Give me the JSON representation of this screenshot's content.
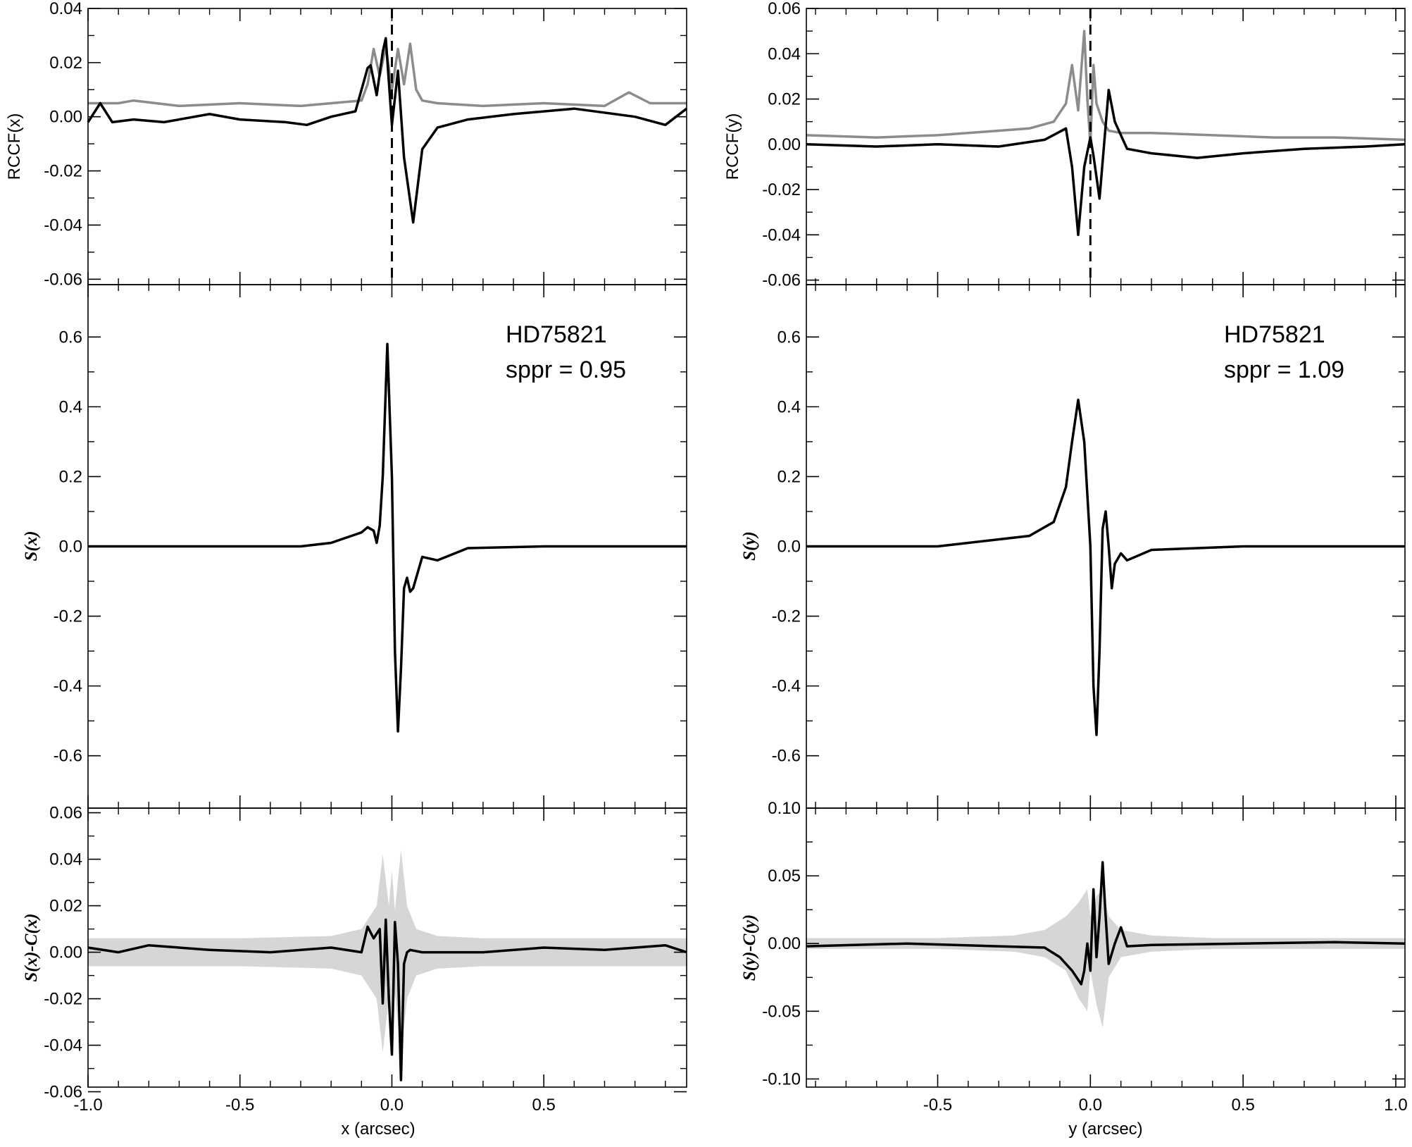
{
  "chart_data": [
    {
      "id": "top-left",
      "type": "line",
      "ylabel": "RCCF(x)",
      "xlim": [
        -1.0,
        0.97
      ],
      "ylim": [
        -0.062,
        0.04
      ],
      "yticks": [
        0.04,
        0.02,
        0.0,
        -0.02,
        -0.04,
        -0.06
      ],
      "ytick_labels": [
        "0.04",
        "0.02",
        "0.00",
        "-0.02",
        "-0.04",
        "-0.06"
      ],
      "vline_x": 0.0,
      "series": [
        {
          "color": "#8c8c8c",
          "x": [
            -1.0,
            -0.9,
            -0.85,
            -0.7,
            -0.5,
            -0.3,
            -0.2,
            -0.1,
            -0.08,
            -0.06,
            -0.04,
            -0.02,
            0.0,
            0.02,
            0.04,
            0.06,
            0.08,
            0.1,
            0.15,
            0.3,
            0.5,
            0.7,
            0.78,
            0.85,
            0.97
          ],
          "y": [
            0.005,
            0.005,
            0.006,
            0.004,
            0.005,
            0.004,
            0.005,
            0.006,
            0.012,
            0.025,
            0.015,
            0.026,
            0.01,
            0.025,
            0.012,
            0.027,
            0.01,
            0.006,
            0.005,
            0.004,
            0.005,
            0.004,
            0.009,
            0.005,
            0.005
          ]
        },
        {
          "color": "#000000",
          "x": [
            -1.0,
            -0.96,
            -0.92,
            -0.85,
            -0.75,
            -0.6,
            -0.5,
            -0.35,
            -0.28,
            -0.2,
            -0.12,
            -0.08,
            -0.07,
            -0.05,
            -0.03,
            -0.02,
            0.0,
            0.02,
            0.04,
            0.07,
            0.1,
            0.15,
            0.25,
            0.4,
            0.6,
            0.8,
            0.9,
            0.97
          ],
          "y": [
            -0.002,
            0.005,
            -0.002,
            -0.001,
            -0.002,
            0.001,
            -0.001,
            -0.002,
            -0.003,
            0.0,
            0.002,
            0.018,
            0.019,
            0.008,
            0.024,
            0.029,
            -0.003,
            0.017,
            -0.015,
            -0.039,
            -0.012,
            -0.004,
            -0.001,
            0.001,
            0.003,
            0.0,
            -0.003,
            0.003
          ]
        }
      ]
    },
    {
      "id": "mid-left",
      "type": "line",
      "ylabel": "S(x)",
      "xlim": [
        -1.0,
        0.97
      ],
      "ylim": [
        -0.75,
        0.75
      ],
      "yticks": [
        0.6,
        0.4,
        0.2,
        0.0,
        -0.2,
        -0.4,
        -0.6
      ],
      "ytick_labels": [
        "0.6",
        "0.4",
        "0.2",
        "0.0",
        "-0.2",
        "-0.4",
        "-0.6"
      ],
      "annotations": [
        "HD75821",
        "sppr = 0.95"
      ],
      "series": [
        {
          "color": "#000000",
          "x": [
            -1.0,
            -0.6,
            -0.3,
            -0.2,
            -0.1,
            -0.08,
            -0.06,
            -0.05,
            -0.04,
            -0.03,
            -0.015,
            0.0,
            0.01,
            0.02,
            0.03,
            0.04,
            0.05,
            0.06,
            0.07,
            0.1,
            0.15,
            0.25,
            0.5,
            0.97
          ],
          "y": [
            0.0,
            0.0,
            0.0,
            0.01,
            0.04,
            0.055,
            0.045,
            0.01,
            0.06,
            0.2,
            0.58,
            0.2,
            -0.3,
            -0.53,
            -0.35,
            -0.12,
            -0.09,
            -0.13,
            -0.12,
            -0.03,
            -0.04,
            -0.005,
            0.0,
            0.0
          ]
        }
      ]
    },
    {
      "id": "bot-left",
      "type": "area",
      "ylabel": "S(x)-C(x)",
      "xlabel": "x (arcsec)",
      "xlim": [
        -1.0,
        0.97
      ],
      "ylim": [
        -0.058,
        0.062
      ],
      "yticks": [
        0.06,
        0.04,
        0.02,
        0.0,
        -0.02,
        -0.04,
        -0.06
      ],
      "ytick_labels": [
        "0.06",
        "0.04",
        "0.02",
        "0.00",
        "-0.02",
        "-0.04",
        "-0.06"
      ],
      "xticks": [
        -1.0,
        -0.5,
        0.0,
        0.5
      ],
      "xtick_labels": [
        "-1.0",
        "-0.5",
        "0.0",
        "0.5"
      ],
      "band": {
        "color": "#d6d6d6",
        "x": [
          -1.0,
          -0.5,
          -0.2,
          -0.1,
          -0.05,
          -0.03,
          -0.01,
          0.0,
          0.01,
          0.03,
          0.05,
          0.08,
          0.15,
          0.3,
          0.6,
          0.97
        ],
        "upper": [
          0.006,
          0.006,
          0.007,
          0.01,
          0.02,
          0.042,
          0.02,
          0.035,
          0.018,
          0.044,
          0.02,
          0.01,
          0.007,
          0.006,
          0.006,
          0.006
        ],
        "lower": [
          -0.006,
          -0.006,
          -0.007,
          -0.01,
          -0.02,
          -0.043,
          -0.02,
          -0.035,
          -0.018,
          -0.044,
          -0.02,
          -0.01,
          -0.007,
          -0.006,
          -0.006,
          -0.006
        ]
      },
      "series": [
        {
          "color": "#000000",
          "x": [
            -1.0,
            -0.9,
            -0.8,
            -0.6,
            -0.4,
            -0.2,
            -0.1,
            -0.08,
            -0.06,
            -0.04,
            -0.03,
            -0.02,
            -0.01,
            0.0,
            0.01,
            0.02,
            0.03,
            0.04,
            0.05,
            0.06,
            0.1,
            0.3,
            0.5,
            0.7,
            0.9,
            0.97
          ],
          "y": [
            0.002,
            0.0,
            0.003,
            0.001,
            0.0,
            0.002,
            0.0,
            0.011,
            0.006,
            0.01,
            -0.022,
            0.014,
            -0.02,
            -0.044,
            0.013,
            -0.005,
            -0.055,
            -0.005,
            0.0,
            0.001,
            0.0,
            0.0,
            0.002,
            0.001,
            0.003,
            0.0
          ]
        }
      ]
    },
    {
      "id": "top-right",
      "type": "line",
      "ylabel": "RCCF(y)",
      "xlim": [
        -0.93,
        1.03
      ],
      "ylim": [
        -0.062,
        0.06
      ],
      "yticks": [
        0.06,
        0.04,
        0.02,
        0.0,
        -0.02,
        -0.04,
        -0.06
      ],
      "ytick_labels": [
        "0.06",
        "0.04",
        "0.02",
        "0.00",
        "-0.02",
        "-0.04",
        "-0.06"
      ],
      "vline_x": 0.0,
      "series": [
        {
          "color": "#8c8c8c",
          "x": [
            -0.93,
            -0.7,
            -0.5,
            -0.3,
            -0.2,
            -0.12,
            -0.08,
            -0.06,
            -0.04,
            -0.02,
            -0.01,
            0.0,
            0.01,
            0.02,
            0.04,
            0.06,
            0.1,
            0.2,
            0.4,
            0.6,
            0.8,
            1.03
          ],
          "y": [
            0.004,
            0.003,
            0.004,
            0.006,
            0.007,
            0.01,
            0.018,
            0.035,
            0.015,
            0.05,
            0.02,
            0.0,
            0.035,
            0.018,
            0.01,
            0.006,
            0.005,
            0.005,
            0.004,
            0.003,
            0.003,
            0.002
          ]
        },
        {
          "color": "#000000",
          "x": [
            -0.93,
            -0.7,
            -0.5,
            -0.3,
            -0.15,
            -0.08,
            -0.06,
            -0.04,
            -0.02,
            0.0,
            0.01,
            0.03,
            0.06,
            0.08,
            0.12,
            0.2,
            0.35,
            0.5,
            0.7,
            0.9,
            1.03
          ],
          "y": [
            0.0,
            -0.001,
            0.0,
            -0.001,
            0.002,
            0.007,
            -0.01,
            -0.04,
            -0.01,
            0.003,
            -0.005,
            -0.024,
            0.024,
            0.01,
            -0.002,
            -0.004,
            -0.006,
            -0.004,
            -0.002,
            -0.001,
            0.0
          ]
        }
      ]
    },
    {
      "id": "mid-right",
      "type": "line",
      "ylabel": "S(y)",
      "xlim": [
        -0.93,
        1.03
      ],
      "ylim": [
        -0.75,
        0.75
      ],
      "yticks": [
        0.6,
        0.4,
        0.2,
        0.0,
        -0.2,
        -0.4,
        -0.6
      ],
      "ytick_labels": [
        "0.6",
        "0.4",
        "0.2",
        "0.0",
        "-0.2",
        "-0.4",
        "-0.6"
      ],
      "annotations": [
        "HD75821",
        "sppr = 1.09"
      ],
      "series": [
        {
          "color": "#000000",
          "x": [
            -0.93,
            -0.5,
            -0.2,
            -0.12,
            -0.08,
            -0.06,
            -0.04,
            -0.02,
            0.0,
            0.01,
            0.02,
            0.03,
            0.04,
            0.05,
            0.06,
            0.07,
            0.08,
            0.1,
            0.12,
            0.2,
            0.5,
            1.03
          ],
          "y": [
            0.0,
            0.0,
            0.03,
            0.07,
            0.17,
            0.3,
            0.42,
            0.3,
            0.0,
            -0.4,
            -0.54,
            -0.3,
            0.05,
            0.1,
            0.0,
            -0.12,
            -0.05,
            -0.02,
            -0.04,
            -0.01,
            0.0,
            0.0
          ]
        }
      ]
    },
    {
      "id": "bot-right",
      "type": "area",
      "ylabel": "S(y)-C(y)",
      "xlabel": "y (arcsec)",
      "xlim": [
        -0.93,
        1.03
      ],
      "ylim": [
        -0.106,
        0.1
      ],
      "yticks": [
        0.1,
        0.05,
        0.0,
        -0.05,
        -0.1
      ],
      "ytick_labels": [
        "0.10",
        "0.05",
        "0.00",
        "-0.05",
        "-0.10"
      ],
      "xticks": [
        -0.5,
        0.0,
        0.5,
        1.0
      ],
      "xtick_labels": [
        "-0.5",
        "0.0",
        "0.5",
        "1.0"
      ],
      "band": {
        "color": "#d6d6d6",
        "x": [
          -0.93,
          -0.5,
          -0.25,
          -0.15,
          -0.08,
          -0.04,
          -0.01,
          0.0,
          0.02,
          0.04,
          0.06,
          0.1,
          0.2,
          0.4,
          1.03
        ],
        "upper": [
          0.004,
          0.004,
          0.006,
          0.01,
          0.02,
          0.03,
          0.04,
          0.02,
          0.035,
          0.04,
          0.02,
          0.01,
          0.006,
          0.004,
          0.004
        ],
        "lower": [
          -0.004,
          -0.004,
          -0.006,
          -0.01,
          -0.02,
          -0.04,
          -0.05,
          -0.02,
          -0.045,
          -0.062,
          -0.025,
          -0.01,
          -0.006,
          -0.004,
          -0.004
        ]
      },
      "series": [
        {
          "color": "#000000",
          "x": [
            -0.93,
            -0.6,
            -0.3,
            -0.15,
            -0.1,
            -0.06,
            -0.03,
            -0.02,
            -0.01,
            0.0,
            0.01,
            0.02,
            0.03,
            0.04,
            0.05,
            0.06,
            0.08,
            0.1,
            0.12,
            0.2,
            0.5,
            0.8,
            1.03
          ],
          "y": [
            -0.002,
            0.0,
            -0.002,
            -0.003,
            -0.01,
            -0.02,
            -0.03,
            -0.02,
            0.0,
            -0.02,
            0.04,
            -0.01,
            0.02,
            0.06,
            0.02,
            -0.015,
            0.0,
            0.012,
            -0.002,
            -0.001,
            0.0,
            0.001,
            0.0
          ]
        }
      ]
    }
  ]
}
